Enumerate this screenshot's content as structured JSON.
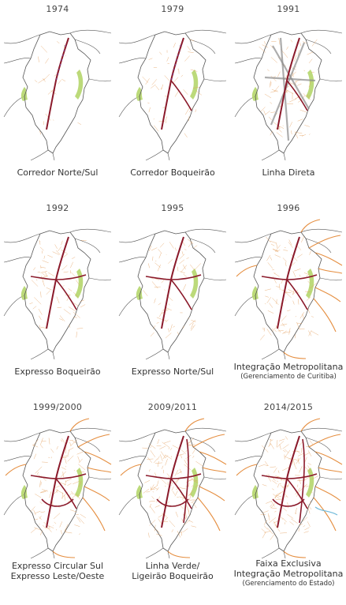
{
  "panels": [
    {
      "year": "1974",
      "caption": [
        "Corredor Norte/Sul"
      ],
      "density": 1,
      "metro": false,
      "corridors": [
        "ns"
      ]
    },
    {
      "year": "1979",
      "caption": [
        "Corredor Boqueirão"
      ],
      "density": 2,
      "metro": false,
      "corridors": [
        "ns",
        "boq"
      ]
    },
    {
      "year": "1991",
      "caption": [
        "Linha Direta"
      ],
      "density": 4,
      "metro": false,
      "corridors": [
        "ns",
        "boq",
        "direta"
      ]
    },
    {
      "year": "1992",
      "caption": [
        "Expresso Boqueirão"
      ],
      "density": 3,
      "metro": false,
      "corridors": [
        "ns",
        "boq",
        "ew"
      ]
    },
    {
      "year": "1995",
      "caption": [
        "Expresso Norte/Sul"
      ],
      "density": 3,
      "metro": false,
      "corridors": [
        "ns",
        "boq",
        "ew"
      ]
    },
    {
      "year": "1996",
      "caption": [
        "Integração Metropolitana",
        "(Gerenciamento de Curitiba)"
      ],
      "density": 4,
      "metro": true,
      "corridors": [
        "ns",
        "boq",
        "ew"
      ]
    },
    {
      "year": "1999/2000",
      "caption": [
        "Expresso Circular Sul",
        "Expresso Leste/Oeste"
      ],
      "density": 5,
      "metro": true,
      "corridors": [
        "ns",
        "boq",
        "ew",
        "circ"
      ]
    },
    {
      "year": "2009/2011",
      "caption": [
        "Linha Verde/",
        "Ligeirão Boqueirão"
      ],
      "density": 6,
      "metro": true,
      "corridors": [
        "ns",
        "boq",
        "ew",
        "circ",
        "verde"
      ]
    },
    {
      "year": "2014/2015",
      "caption": [
        "Faixa Exclusiva",
        "Integração Metropolitana",
        "(Gerenciamento do Estado)"
      ],
      "density": 6,
      "metro": true,
      "corridors": [
        "ns",
        "boq",
        "ew",
        "circ",
        "verde"
      ]
    }
  ],
  "colors": {
    "boundary": "#555555",
    "trunk": "#8b1a2b",
    "feeder": "#e39a55",
    "metro": "#e07a1f",
    "park": "#b5d66b",
    "direta": "#8a8a8a",
    "purple": "#7a3f8e",
    "water": "#6fb9d9"
  }
}
